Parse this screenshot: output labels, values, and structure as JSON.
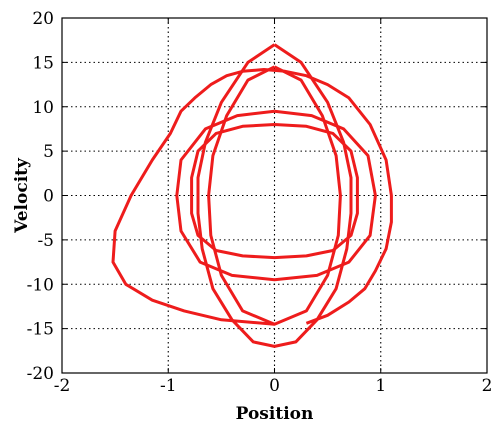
{
  "chart_data": {
    "type": "line",
    "title": "",
    "xlabel": "Position",
    "ylabel": "Velocity",
    "xlim": [
      -2,
      2
    ],
    "ylim": [
      -20,
      20
    ],
    "x_ticks": [
      -2,
      -1,
      0,
      1,
      2
    ],
    "x_tick_labels": [
      "-2",
      "-1",
      "0",
      "1",
      "2"
    ],
    "y_ticks": [
      -20,
      -15,
      -10,
      -5,
      0,
      5,
      10,
      15,
      20
    ],
    "y_tick_labels": [
      "-20",
      "-15",
      "-10",
      "-5",
      "0",
      "5",
      "10",
      "15",
      "20"
    ],
    "grid": true,
    "grid_style": "dotted",
    "legend": "none",
    "series": [
      {
        "color": "#ee1c1c",
        "x": [
          0.0,
          -0.5,
          -0.85,
          -1.15,
          -1.4,
          -1.52,
          -1.5,
          -1.35,
          -1.15,
          -0.98,
          -0.88,
          -0.75,
          -0.6,
          -0.45,
          -0.3,
          -0.1,
          0.1,
          0.3,
          0.5,
          0.7,
          0.9,
          1.05,
          1.1,
          1.1,
          1.05,
          0.95,
          0.85,
          0.7,
          0.5,
          0.3
        ],
        "y": [
          -14.5,
          -14.0,
          -13.0,
          -11.8,
          -10.0,
          -7.5,
          -4.0,
          0.0,
          4.0,
          7.0,
          9.5,
          11.0,
          12.5,
          13.5,
          14.0,
          14.2,
          14.0,
          13.5,
          12.5,
          11.0,
          8.0,
          4.0,
          0.0,
          -3.0,
          -6.0,
          -8.5,
          -10.5,
          -12.0,
          -13.5,
          -14.4
        ]
      },
      {
        "color": "#ee1c1c",
        "x": [
          0.0,
          0.25,
          0.5,
          0.65,
          0.72,
          0.72,
          0.68,
          0.58,
          0.4,
          0.2,
          0.0,
          -0.2,
          -0.4,
          -0.58,
          -0.68,
          -0.72,
          -0.72,
          -0.65,
          -0.5,
          -0.25,
          0.0
        ],
        "y": [
          17.0,
          15.0,
          10.5,
          6.0,
          2.0,
          -2.0,
          -6.0,
          -10.5,
          -14.0,
          -16.5,
          -17.0,
          -16.5,
          -14.0,
          -10.5,
          -6.0,
          -2.0,
          2.0,
          6.0,
          10.5,
          15.0,
          17.0
        ]
      },
      {
        "color": "#ee1c1c",
        "x": [
          0.0,
          0.3,
          0.55,
          0.72,
          0.78,
          0.78,
          0.72,
          0.55,
          0.3,
          0.0,
          -0.3,
          -0.55,
          -0.72,
          -0.78,
          -0.78,
          -0.72,
          -0.55,
          -0.3,
          0.0
        ],
        "y": [
          8.0,
          7.8,
          7.0,
          5.0,
          2.0,
          -2.0,
          -4.5,
          -6.2,
          -6.8,
          -7.0,
          -6.8,
          -6.2,
          -4.5,
          -2.0,
          2.0,
          5.0,
          7.0,
          7.8,
          8.0
        ]
      },
      {
        "color": "#ee1c1c",
        "x": [
          0.0,
          0.35,
          0.65,
          0.88,
          0.95,
          0.9,
          0.7,
          0.4,
          0.0,
          -0.4,
          -0.7,
          -0.88,
          -0.92,
          -0.88,
          -0.65,
          -0.35,
          0.0
        ],
        "y": [
          9.5,
          9.0,
          7.5,
          4.5,
          0.0,
          -4.5,
          -7.5,
          -9.0,
          -9.5,
          -9.0,
          -7.5,
          -4.0,
          0.0,
          4.0,
          7.5,
          9.0,
          9.5
        ]
      },
      {
        "color": "#ee1c1c",
        "x": [
          0.0,
          0.25,
          0.45,
          0.58,
          0.62,
          0.6,
          0.5,
          0.3,
          0.0,
          -0.3,
          -0.5,
          -0.6,
          -0.62,
          -0.58,
          -0.45,
          -0.25,
          0.0
        ],
        "y": [
          14.5,
          13.0,
          9.0,
          4.5,
          0.0,
          -4.5,
          -9.0,
          -13.0,
          -14.5,
          -13.0,
          -9.0,
          -4.5,
          0.0,
          4.5,
          9.0,
          13.0,
          14.5
        ]
      }
    ]
  }
}
